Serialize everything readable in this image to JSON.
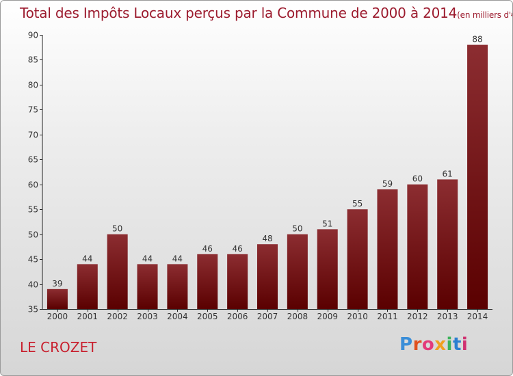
{
  "header": {
    "title": "Total des Impôts Locaux perçus par la Commune de 2000 à 2014",
    "unit": "(en milliers d'€)"
  },
  "footer": {
    "commune": "LE CROZET",
    "logo_text": "Proxiti"
  },
  "colors": {
    "bar_top": "#8c2d31",
    "bar_bottom": "#5a0000",
    "axis": "#222222",
    "title": "#9c1b2e",
    "logo": [
      "#3a8ed8",
      "#e0501e",
      "#e33a7a",
      "#f0a020",
      "#3bb35a",
      "#2a7fd0",
      "#d03070"
    ]
  },
  "chart_data": {
    "type": "bar",
    "title": "Total des Impôts Locaux perçus par la Commune de 2000 à 2014",
    "xlabel": "",
    "ylabel": "",
    "categories": [
      "2000",
      "2001",
      "2002",
      "2003",
      "2004",
      "2005",
      "2006",
      "2007",
      "2008",
      "2009",
      "2010",
      "2011",
      "2012",
      "2013",
      "2014"
    ],
    "values": [
      39,
      44,
      50,
      44,
      44,
      46,
      46,
      48,
      50,
      51,
      55,
      59,
      60,
      61,
      88
    ],
    "ylim": [
      35,
      90
    ],
    "yticks": [
      35,
      40,
      45,
      50,
      55,
      60,
      65,
      70,
      75,
      80,
      85,
      90
    ],
    "grid": false
  }
}
